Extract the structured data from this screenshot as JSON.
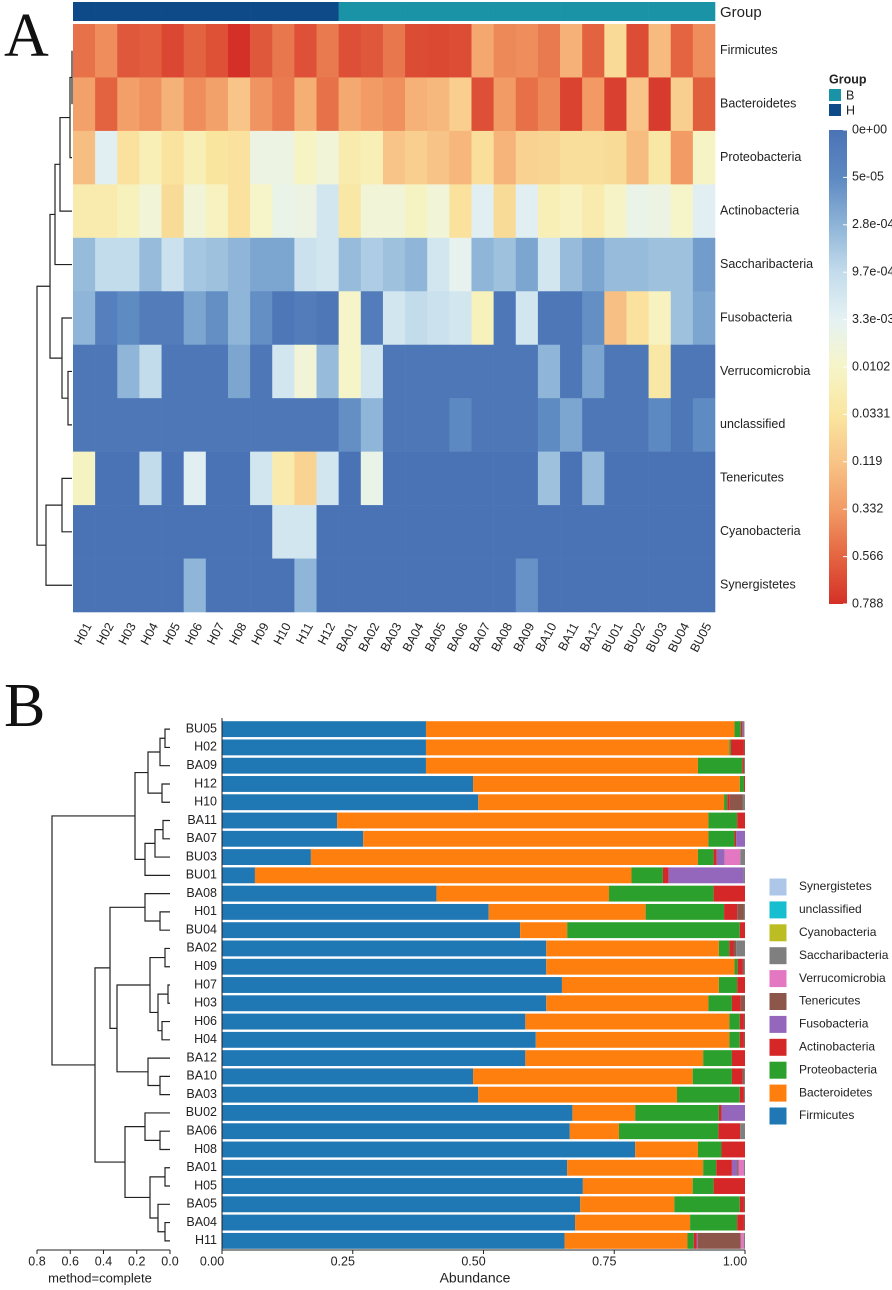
{
  "chart_data": [
    {
      "type": "heatmap",
      "panel_label": "A",
      "group_label": "Group",
      "columns": [
        "H01",
        "H02",
        "H03",
        "H04",
        "H05",
        "H06",
        "H07",
        "H08",
        "H09",
        "H10",
        "H11",
        "H12",
        "BA01",
        "BA02",
        "BA03",
        "BA04",
        "BA05",
        "BA06",
        "BA07",
        "BA08",
        "BA09",
        "BA10",
        "BA11",
        "BA12",
        "BU01",
        "BU02",
        "BU03",
        "BU04",
        "BU05"
      ],
      "column_groups": [
        "H",
        "H",
        "H",
        "H",
        "H",
        "H",
        "H",
        "H",
        "H",
        "H",
        "H",
        "H",
        "B",
        "B",
        "B",
        "B",
        "B",
        "B",
        "B",
        "B",
        "B",
        "B",
        "B",
        "B",
        "B",
        "B",
        "B",
        "B",
        "B"
      ],
      "group_legend": [
        {
          "name": "B",
          "color": "#1b93a7"
        },
        {
          "name": "H",
          "color": "#0d4a87"
        }
      ],
      "rows": [
        "Firmicutes",
        "Bacteroidetes",
        "Proteobacteria",
        "Actinobacteria",
        "Saccharibacteria",
        "Fusobacteria",
        "Verrucomicrobia",
        "unclassified",
        "Tenericutes",
        "Cyanobacteria",
        "Synergistetes"
      ],
      "values": [
        [
          0.51,
          0.39,
          0.62,
          0.6,
          0.69,
          0.58,
          0.65,
          0.79,
          0.62,
          0.49,
          0.655,
          0.48,
          0.66,
          0.62,
          0.49,
          0.675,
          0.685,
          0.665,
          0.27,
          0.41,
          0.39,
          0.48,
          0.22,
          0.58,
          0.063,
          0.67,
          0.17,
          0.57,
          0.39
        ],
        [
          0.3,
          0.58,
          0.31,
          0.37,
          0.21,
          0.39,
          0.3,
          0.12,
          0.36,
          0.47,
          0.235,
          0.51,
          0.26,
          0.33,
          0.38,
          0.22,
          0.18,
          0.094,
          0.66,
          0.33,
          0.52,
          0.42,
          0.71,
          0.34,
          0.72,
          0.12,
          0.74,
          0.09,
          0.59
        ],
        [
          0.15,
          0.003,
          0.045,
          0.02,
          0.04,
          0.02,
          0.035,
          0.045,
          0.006,
          0.006,
          0.012,
          0.008,
          0.025,
          0.02,
          0.12,
          0.09,
          0.125,
          0.19,
          0.05,
          0.2,
          0.085,
          0.075,
          0.055,
          0.055,
          0.06,
          0.16,
          0.03,
          0.33,
          0.012
        ],
        [
          0.025,
          0.025,
          0.017,
          0.008,
          0.06,
          0.008,
          0.015,
          0.045,
          0.01,
          0.005,
          0.006,
          0.002,
          0.03,
          0.008,
          0.008,
          0.013,
          0.008,
          0.042,
          0.003,
          0.06,
          0.003,
          0.02,
          0.015,
          0.025,
          0.011,
          0.005,
          0.006,
          0.01,
          0.003
        ],
        [
          0.0004,
          0.001,
          0.001,
          0.0004,
          0.0015,
          0.0006,
          0.0005,
          0.0003,
          0.0002,
          0.0002,
          0.0015,
          0.002,
          0.0004,
          0.0007,
          0.0005,
          0.0003,
          0.002,
          0.004,
          0.0003,
          0.0005,
          0.0002,
          0.002,
          0.0004,
          0.0002,
          0.0004,
          0.0004,
          0.0005,
          0.0005,
          0.00015
        ],
        [
          0.0003,
          3e-05,
          6e-05,
          2e-05,
          2e-05,
          0.0002,
          8e-05,
          0.0003,
          8e-05,
          1e-05,
          2e-05,
          1e-05,
          0.01,
          2e-05,
          0.002,
          0.001,
          0.0015,
          0.002,
          0.017,
          1e-05,
          0.002,
          1e-05,
          1e-05,
          8e-05,
          0.143,
          0.045,
          0.015,
          0.0005,
          0.0002
        ],
        [
          1e-05,
          1e-05,
          0.0003,
          0.001,
          1e-05,
          1e-05,
          1e-05,
          0.0002,
          1e-05,
          0.002,
          0.008,
          0.0004,
          0.01,
          0.002,
          1e-05,
          1e-05,
          1e-05,
          1e-05,
          1e-05,
          1e-05,
          1e-05,
          0.0003,
          1e-05,
          0.0002,
          1e-05,
          1e-05,
          0.03,
          1e-05,
          1e-05
        ],
        [
          1e-05,
          1e-05,
          1e-05,
          1e-05,
          1e-05,
          1e-05,
          1e-05,
          1e-05,
          1e-05,
          1e-05,
          1e-05,
          1e-05,
          8e-05,
          0.0003,
          1e-05,
          1e-05,
          1e-05,
          5e-05,
          1e-05,
          1e-05,
          1e-05,
          6e-05,
          0.0002,
          1e-05,
          1e-05,
          1e-05,
          5e-05,
          1e-05,
          6e-05
        ],
        [
          0.013,
          0,
          0,
          0.001,
          0,
          0.003,
          0,
          0,
          0.002,
          0.025,
          0.082,
          0.002,
          0,
          0.005,
          0,
          0,
          0,
          0,
          0,
          0,
          0,
          0.0005,
          0,
          0.0004,
          0,
          0,
          0,
          0,
          0
        ],
        [
          0,
          0,
          0,
          0,
          0,
          0,
          0,
          0,
          0,
          0.002,
          0.002,
          0,
          0,
          0,
          0,
          0,
          0,
          0,
          0,
          0,
          0,
          0,
          0,
          0,
          0,
          0,
          0,
          0,
          0
        ],
        [
          0,
          0,
          0,
          0,
          0,
          0.0003,
          0,
          0,
          0,
          0,
          0.0003,
          0,
          0,
          0,
          0,
          0,
          0,
          0,
          0,
          0,
          0.0001,
          0,
          0,
          0,
          0,
          0,
          0,
          0,
          0
        ]
      ],
      "colorbar": {
        "ticks": [
          {
            "value": 0,
            "label": "0e+00"
          },
          {
            "value": 5e-05,
            "label": "5e-05"
          },
          {
            "value": 0.00028,
            "label": "2.8e-04"
          },
          {
            "value": 0.00097,
            "label": "9.7e-04"
          },
          {
            "value": 0.0033,
            "label": "3.3e-03"
          },
          0.0102,
          0.0331,
          0.119,
          0.332,
          0.566,
          0.788
        ],
        "colors": [
          "#4a73b5",
          "#5d89c2",
          "#8db4d7",
          "#c3dcec",
          "#e5f2f3",
          "#f6f5c8",
          "#fae6a0",
          "#f8c487",
          "#f29b65",
          "#e46541",
          "#d43027"
        ]
      }
    },
    {
      "type": "stacked_barh",
      "panel_label": "B",
      "xlabel": "Abundance",
      "dendro_label": "method=complete",
      "categories": [
        "BU05",
        "H02",
        "BA09",
        "H12",
        "H10",
        "BA11",
        "BA07",
        "BU03",
        "BU01",
        "BA08",
        "H01",
        "BU04",
        "BA02",
        "H09",
        "H07",
        "H03",
        "H06",
        "H04",
        "BA12",
        "BA10",
        "BA03",
        "BU02",
        "BA06",
        "H08",
        "BA01",
        "H05",
        "BA05",
        "BA04",
        "H11"
      ],
      "xlim": [
        0,
        1
      ],
      "xticks": [
        {
          "value": 0,
          "label": "0.00"
        },
        0.25,
        {
          "value": 0.5,
          "label": "0.50"
        },
        0.75,
        {
          "value": 1,
          "label": "1.00"
        }
      ],
      "dendro_xlim": [
        0.8,
        0
      ],
      "dendro_xticks": [
        0.8,
        0.6,
        0.4,
        0.2,
        {
          "value": 0,
          "label": "0.0"
        }
      ],
      "series": [
        {
          "name": "Firmicutes",
          "color": "#1f77b4",
          "values": [
            0.39,
            0.39,
            0.39,
            0.48,
            0.49,
            0.22,
            0.27,
            0.17,
            0.063,
            0.41,
            0.51,
            0.57,
            0.62,
            0.62,
            0.65,
            0.62,
            0.58,
            0.6,
            0.58,
            0.48,
            0.49,
            0.67,
            0.665,
            0.79,
            0.66,
            0.69,
            0.685,
            0.675,
            0.655
          ]
        },
        {
          "name": "Bacteroidetes",
          "color": "#ff7f0e",
          "values": [
            0.59,
            0.58,
            0.52,
            0.51,
            0.47,
            0.71,
            0.66,
            0.74,
            0.72,
            0.33,
            0.3,
            0.09,
            0.33,
            0.36,
            0.3,
            0.31,
            0.39,
            0.37,
            0.34,
            0.42,
            0.38,
            0.12,
            0.094,
            0.12,
            0.26,
            0.21,
            0.18,
            0.22,
            0.235
          ]
        },
        {
          "name": "Proteobacteria",
          "color": "#2ca02c",
          "values": [
            0.012,
            0.003,
            0.085,
            0.008,
            0.006,
            0.055,
            0.05,
            0.03,
            0.06,
            0.2,
            0.15,
            0.33,
            0.02,
            0.006,
            0.035,
            0.045,
            0.02,
            0.02,
            0.055,
            0.075,
            0.12,
            0.16,
            0.19,
            0.045,
            0.025,
            0.04,
            0.125,
            0.09,
            0.012
          ]
        },
        {
          "name": "Actinobacteria",
          "color": "#d62728",
          "values": [
            0.003,
            0.025,
            0.003,
            0.002,
            0.005,
            0.015,
            0.003,
            0.006,
            0.011,
            0.06,
            0.025,
            0.01,
            0.008,
            0.01,
            0.015,
            0.017,
            0.008,
            0.008,
            0.025,
            0.02,
            0.008,
            0.005,
            0.042,
            0.045,
            0.03,
            0.06,
            0.008,
            0.013,
            0.006
          ]
        },
        {
          "name": "Fusobacteria",
          "color": "#9467bd",
          "values": [
            0.002,
            0,
            0,
            0,
            0,
            0,
            0.017,
            0.015,
            0.143,
            0,
            0,
            0,
            0,
            0,
            0,
            0,
            0,
            0,
            0,
            0,
            0,
            0.045,
            0,
            0,
            0.01,
            0,
            0,
            0,
            0.002
          ]
        },
        {
          "name": "Tenericutes",
          "color": "#8c564b",
          "values": [
            0.001,
            0.002,
            0,
            0,
            0.025,
            0,
            0,
            0,
            0,
            0,
            0.013,
            0,
            0.005,
            0.002,
            0,
            0.008,
            0.002,
            0.002,
            0,
            0.003,
            0,
            0,
            0,
            0,
            0.003,
            0,
            0.002,
            0.002,
            0.082
          ]
        },
        {
          "name": "Verrucomicrobia",
          "color": "#e377c2",
          "values": [
            0,
            0,
            0,
            0,
            0,
            0,
            0,
            0.03,
            0,
            0,
            0,
            0,
            0,
            0,
            0,
            0,
            0,
            0,
            0,
            0,
            0,
            0,
            0,
            0,
            0.01,
            0,
            0,
            0,
            0.006
          ]
        },
        {
          "name": "Saccharibacteria",
          "color": "#7f7f7f",
          "values": [
            0.001,
            0,
            0.002,
            0,
            0.004,
            0,
            0,
            0.009,
            0.003,
            0,
            0.002,
            0,
            0.017,
            0.002,
            0,
            0,
            0,
            0,
            0,
            0.002,
            0.002,
            0,
            0.009,
            0,
            0.002,
            0,
            0,
            0,
            0.002
          ]
        },
        {
          "name": "Cyanobacteria",
          "color": "#bcbd22",
          "values": [
            0,
            0,
            0,
            0,
            0,
            0,
            0,
            0,
            0,
            0,
            0,
            0,
            0,
            0,
            0,
            0,
            0,
            0,
            0,
            0,
            0,
            0,
            0,
            0,
            0,
            0,
            0,
            0,
            0
          ]
        },
        {
          "name": "unclassified",
          "color": "#17becf",
          "values": [
            0,
            0,
            0,
            0,
            0,
            0,
            0,
            0,
            0,
            0,
            0,
            0,
            0,
            0,
            0,
            0,
            0,
            0,
            0,
            0,
            0,
            0,
            0,
            0,
            0,
            0,
            0,
            0,
            0
          ]
        },
        {
          "name": "Synergistetes",
          "color": "#aec7e8",
          "values": [
            0,
            0,
            0,
            0,
            0,
            0,
            0,
            0,
            0,
            0,
            0,
            0,
            0,
            0,
            0,
            0,
            0,
            0,
            0,
            0,
            0,
            0,
            0,
            0,
            0,
            0,
            0,
            0,
            0
          ]
        }
      ]
    }
  ]
}
